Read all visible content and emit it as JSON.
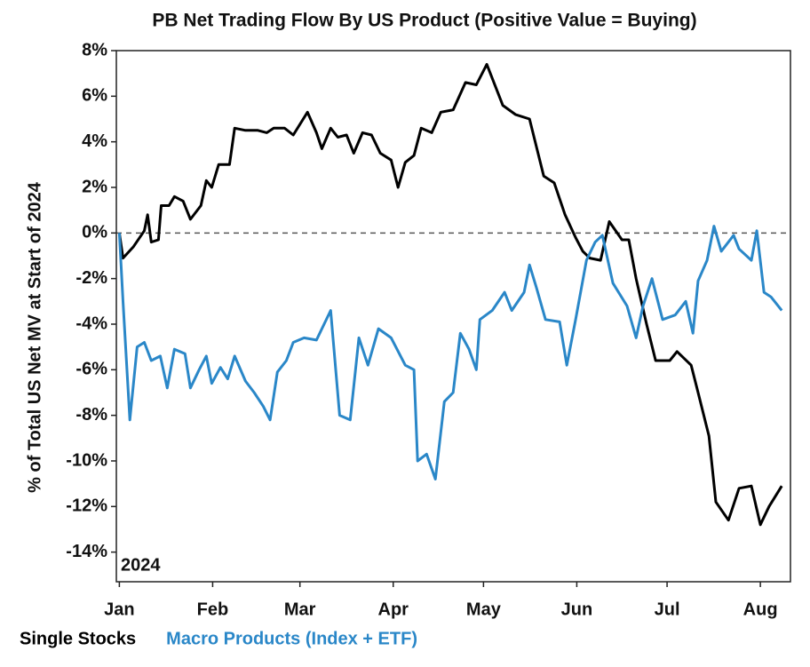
{
  "chart_data": {
    "type": "line",
    "title": "PB Net Trading Flow By US Product (Positive Value = Buying)",
    "y_label": "% of Total US Net MV at Start of 2024",
    "annotation": "2024",
    "xlim": [
      0,
      224
    ],
    "xticks": [
      {
        "value": 1,
        "label": "Jan"
      },
      {
        "value": 32,
        "label": "Feb"
      },
      {
        "value": 61,
        "label": "Mar"
      },
      {
        "value": 92,
        "label": "Apr"
      },
      {
        "value": 122,
        "label": "May"
      },
      {
        "value": 153,
        "label": "Jun"
      },
      {
        "value": 183,
        "label": "Jul"
      },
      {
        "value": 214,
        "label": "Aug"
      }
    ],
    "ylim": [
      -15.3,
      8
    ],
    "yticks": [
      {
        "value": -14,
        "label": "-14%"
      },
      {
        "value": -12,
        "label": "-12%"
      },
      {
        "value": -10,
        "label": "-10%"
      },
      {
        "value": -8,
        "label": "-8%"
      },
      {
        "value": -6,
        "label": "-6%"
      },
      {
        "value": -4,
        "label": "-4%"
      },
      {
        "value": -2,
        "label": "-2%"
      },
      {
        "value": 0,
        "label": "0%"
      },
      {
        "value": 2,
        "label": "2%"
      },
      {
        "value": 4,
        "label": "4%"
      },
      {
        "value": 6,
        "label": "6%"
      },
      {
        "value": 8,
        "label": "8%"
      }
    ],
    "reference_line": {
      "value": 0,
      "style": "dashed"
    },
    "series": [
      {
        "name": "Single Stocks",
        "color": "#000000",
        "x": [
          1,
          2.2,
          5.7,
          9.3,
          10.4,
          11.6,
          14,
          14.9,
          17.5,
          19.3,
          22.2,
          24.6,
          28.1,
          29.9,
          31.7,
          34,
          37.6,
          39.3,
          42.9,
          47,
          50,
          52.3,
          55.9,
          58.8,
          63.5,
          66.5,
          68.3,
          71.2,
          73.6,
          76.5,
          78.9,
          81.8,
          84.8,
          87.7,
          91.3,
          93.6,
          96,
          98.9,
          101.3,
          104.8,
          107.8,
          111.9,
          116,
          119.6,
          123.1,
          128.4,
          132.6,
          137.3,
          142,
          145.5,
          149.1,
          152.6,
          155,
          157.3,
          160.9,
          163.8,
          168,
          170.3,
          172.7,
          176.2,
          179.2,
          183.9,
          186.3,
          191,
          193.3,
          196.9,
          199.2,
          203.4,
          206.9,
          211,
          214,
          216.9,
          221.1
        ],
        "values": [
          0,
          -1.1,
          -0.6,
          0.1,
          0.8,
          -0.4,
          -0.3,
          1.2,
          1.2,
          1.6,
          1.4,
          0.6,
          1.2,
          2.3,
          2.0,
          3.0,
          3.0,
          4.6,
          4.5,
          4.5,
          4.4,
          4.6,
          4.6,
          4.3,
          5.3,
          4.4,
          3.7,
          4.6,
          4.2,
          4.3,
          3.5,
          4.4,
          4.3,
          3.5,
          3.2,
          2.0,
          3.1,
          3.4,
          4.6,
          4.4,
          5.3,
          5.4,
          6.6,
          6.5,
          7.4,
          5.6,
          5.2,
          5.0,
          2.5,
          2.2,
          0.8,
          -0.2,
          -0.8,
          -1.1,
          -1.2,
          0.5,
          -0.3,
          -0.3,
          -2.0,
          -4.0,
          -5.6,
          -5.6,
          -5.2,
          -5.8,
          -7.0,
          -8.9,
          -11.8,
          -12.6,
          -11.2,
          -11.1,
          -12.8,
          -12.0,
          -11.1
        ]
      },
      {
        "name": "Macro Products (Index + ETF)",
        "color": "#2a87c8",
        "x": [
          1,
          2.2,
          4.5,
          6.9,
          9.3,
          11.6,
          14.6,
          16.9,
          19.3,
          22.8,
          24.6,
          27.5,
          29.9,
          31.7,
          34.6,
          37,
          39.3,
          42.9,
          45.8,
          48.8,
          51.1,
          53.5,
          56.5,
          58.8,
          62.4,
          66.5,
          71.2,
          74.2,
          77.7,
          80.6,
          83.6,
          87.1,
          91.3,
          96,
          98.9,
          100.1,
          103.1,
          106,
          109,
          111.9,
          114.3,
          117.2,
          119.6,
          120.8,
          124.9,
          129,
          131.4,
          135.5,
          137.3,
          139.6,
          142.6,
          147.3,
          149.7,
          152.6,
          156.2,
          159.1,
          161.5,
          165,
          169.7,
          172.7,
          175,
          178,
          181.5,
          185.7,
          189.2,
          191.6,
          193.3,
          196.3,
          198.6,
          201,
          205.1,
          206.9,
          211,
          212.8,
          215.2,
          217.5,
          221.1
        ],
        "values": [
          0,
          -3,
          -8.2,
          -5.0,
          -4.8,
          -5.6,
          -5.4,
          -6.8,
          -5.1,
          -5.3,
          -6.8,
          -6.0,
          -5.4,
          -6.6,
          -5.9,
          -6.4,
          -5.4,
          -6.5,
          -7.0,
          -7.6,
          -8.2,
          -6.1,
          -5.6,
          -4.8,
          -4.6,
          -4.7,
          -3.4,
          -8.0,
          -8.2,
          -4.6,
          -5.8,
          -4.2,
          -4.6,
          -5.8,
          -6.0,
          -10.0,
          -9.7,
          -10.8,
          -7.4,
          -7.0,
          -4.4,
          -5.1,
          -6.0,
          -3.8,
          -3.4,
          -2.6,
          -3.4,
          -2.6,
          -1.4,
          -2.4,
          -3.8,
          -3.9,
          -5.8,
          -3.8,
          -1.2,
          -0.4,
          -0.1,
          -2.2,
          -3.2,
          -4.6,
          -3.2,
          -2.0,
          -3.8,
          -3.6,
          -3.0,
          -4.4,
          -2.1,
          -1.2,
          0.3,
          -0.8,
          -0.1,
          -0.7,
          -1.2,
          0.1,
          -2.6,
          -2.8,
          -3.4
        ]
      }
    ]
  }
}
